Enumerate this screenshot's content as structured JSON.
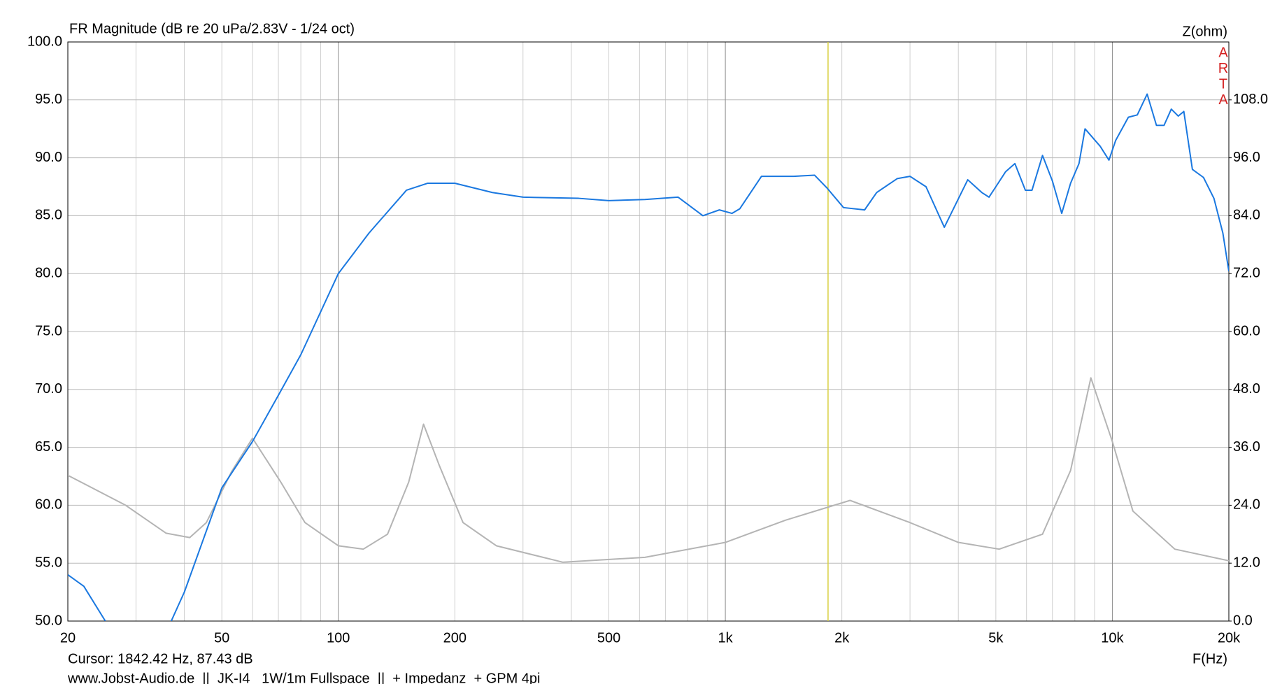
{
  "chart_data": {
    "type": "line",
    "title": "FR Magnitude (dB re 20 uPa/2.83V - 1/24 oct)",
    "y2_label": "Z(ohm)",
    "x_label": "F(Hz)",
    "watermark": [
      "A",
      "R",
      "T",
      "A"
    ],
    "watermark_color": "#d42020",
    "cursor": {
      "x": 1842.42,
      "label": "Cursor: 1842.42 Hz, 87.43 dB",
      "color": "#d8d040"
    },
    "footer": "www.Jobst-Audio.de  ||  JK-I4   1W/1m Fullspace  ||  + Impedanz  + GPM 4pi",
    "xscale": "log",
    "grid": true,
    "xlim": [
      20,
      20000
    ],
    "xticks": [
      20,
      50,
      100,
      200,
      500,
      {
        "value": 1000,
        "label": "1k"
      },
      {
        "value": 2000,
        "label": "2k"
      },
      {
        "value": 5000,
        "label": "5k"
      },
      {
        "value": 10000,
        "label": "10k"
      },
      {
        "value": 20000,
        "label": "20k"
      }
    ],
    "xgrid_minor": [
      30,
      40,
      60,
      70,
      80,
      90,
      300,
      400,
      600,
      700,
      800,
      900,
      3000,
      4000,
      6000,
      7000,
      8000,
      9000
    ],
    "ylim": [
      50,
      100
    ],
    "yticks": [
      {
        "value": 50,
        "label": "50.0"
      },
      {
        "value": 55,
        "label": "55.0"
      },
      {
        "value": 60,
        "label": "60.0"
      },
      {
        "value": 65,
        "label": "65.0"
      },
      {
        "value": 70,
        "label": "70.0"
      },
      {
        "value": 75,
        "label": "75.0"
      },
      {
        "value": 80,
        "label": "80.0"
      },
      {
        "value": 85,
        "label": "85.0"
      },
      {
        "value": 90,
        "label": "90.0"
      },
      {
        "value": 95,
        "label": "95.0"
      },
      {
        "value": 100,
        "label": "100.0"
      }
    ],
    "y2lim": [
      0,
      120
    ],
    "y2ticks": [
      {
        "value": 0,
        "label": "0.0"
      },
      {
        "value": 12,
        "label": "12.0"
      },
      {
        "value": 24,
        "label": "24.0"
      },
      {
        "value": 36,
        "label": "36.0"
      },
      {
        "value": 48,
        "label": "48.0"
      },
      {
        "value": 60,
        "label": "60.0"
      },
      {
        "value": 72,
        "label": "72.0"
      },
      {
        "value": 84,
        "label": "84.0"
      },
      {
        "value": 96,
        "label": "96.0"
      },
      {
        "value": 108,
        "label": "108.0"
      }
    ],
    "series": [
      {
        "color": "#b4b4b4",
        "axis": "y2",
        "x": [
          20,
          28.2,
          35.9,
          41.3,
          45.6,
          53,
          60,
          71,
          82,
          100,
          116,
          134,
          152,
          166,
          182,
          210,
          256,
          380,
          620,
          1000,
          1430,
          2100,
          3000,
          4000,
          5100,
          6600,
          7800,
          8800,
          10000,
          11300,
          14500,
          20000
        ],
        "values": [
          30.2,
          24,
          18.2,
          17.3,
          20.4,
          31,
          37.9,
          28.8,
          20.4,
          15.6,
          14.9,
          18,
          28.8,
          40.8,
          32.4,
          20.4,
          15.6,
          12.2,
          13.2,
          16.3,
          20.9,
          25,
          20.4,
          16.3,
          14.9,
          18,
          31.2,
          50.4,
          37.2,
          22.8,
          14.9,
          12.5
        ]
      },
      {
        "color": "#1a78e0",
        "x": [
          20,
          22,
          25,
          30,
          37,
          40,
          50,
          60,
          70,
          80,
          100,
          120,
          150,
          170,
          200,
          250,
          300,
          418,
          500,
          620,
          755,
          875,
          965,
          1040,
          1090,
          1240,
          1500,
          1700,
          1830,
          2020,
          2290,
          2460,
          2780,
          3000,
          3300,
          3680,
          4230,
          4600,
          4800,
          5000,
          5300,
          5600,
          5960,
          6200,
          6600,
          7000,
          7400,
          7800,
          8200,
          8500,
          9300,
          9800,
          10200,
          11000,
          11600,
          12300,
          13000,
          13600,
          14200,
          14800,
          15300,
          16100,
          17200,
          18300,
          19300,
          20000
        ],
        "values": [
          54,
          53,
          50,
          null,
          50,
          52.5,
          61.5,
          65.5,
          69.5,
          73,
          80,
          83.5,
          87.2,
          87.8,
          87.8,
          87,
          86.6,
          86.5,
          86.3,
          86.4,
          86.6,
          85,
          85.5,
          85.2,
          85.6,
          88.4,
          88.4,
          88.5,
          87.4,
          85.7,
          85.5,
          87,
          88.2,
          88.4,
          87.5,
          84,
          88.1,
          87,
          86.6,
          87.5,
          88.8,
          89.5,
          87.2,
          87.2,
          90.2,
          88,
          85.2,
          87.8,
          89.5,
          92.5,
          91,
          89.8,
          91.5,
          93.5,
          93.7,
          95.5,
          92.8,
          92.8,
          94.2,
          93.6,
          94,
          89,
          88.3,
          86.5,
          83.5,
          80.2
        ]
      }
    ]
  }
}
